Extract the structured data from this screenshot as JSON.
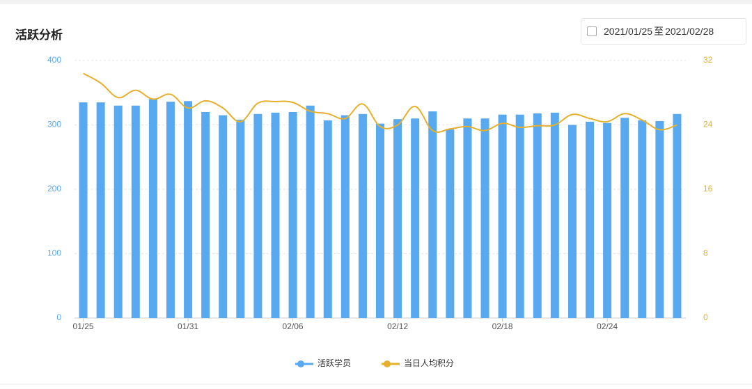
{
  "header": {
    "title": "活跃分析"
  },
  "date_range": {
    "start": "2021/01/25",
    "separator": "至",
    "end": "2021/02/28"
  },
  "chart_data": {
    "type": "bar-line",
    "categories": [
      "01/25",
      null,
      null,
      null,
      null,
      null,
      "01/31",
      null,
      null,
      null,
      null,
      null,
      "02/06",
      null,
      null,
      null,
      null,
      null,
      "02/12",
      null,
      null,
      null,
      null,
      null,
      "02/18",
      null,
      null,
      null,
      null,
      null,
      "02/24",
      null,
      null,
      null,
      null
    ],
    "series": [
      {
        "name": "活跃学员",
        "color": "#58a9f0",
        "type": "bar",
        "values": [
          335,
          335,
          330,
          330,
          340,
          336,
          337,
          320,
          315,
          308,
          317,
          319,
          320,
          330,
          307,
          315,
          317,
          302,
          309,
          310,
          321,
          293,
          310,
          310,
          316,
          316,
          318,
          319,
          300,
          305,
          303,
          311,
          307,
          306,
          317
        ]
      },
      {
        "name": "当日人均积分",
        "color": "#e6b02d",
        "type": "line",
        "axis": "y2",
        "values": [
          30.4,
          29.2,
          27.4,
          28.3,
          27.2,
          27.8,
          26.1,
          27.0,
          26.1,
          24.4,
          26.7,
          26.9,
          26.8,
          25.7,
          25.4,
          24.8,
          26.6,
          23.8,
          24.0,
          26.3,
          23.3,
          23.5,
          23.8,
          23.3,
          24.2,
          23.7,
          23.9,
          24.0,
          25.3,
          24.8,
          24.4,
          25.4,
          24.6,
          23.4,
          24.0
        ]
      }
    ],
    "ylim": [
      0,
      400
    ],
    "yticks": [
      0,
      100,
      200,
      300,
      400
    ],
    "y2lim": [
      0,
      32
    ],
    "y2ticks": [
      0,
      8,
      16,
      24,
      32
    ],
    "grid": true,
    "legend": "bottom"
  }
}
